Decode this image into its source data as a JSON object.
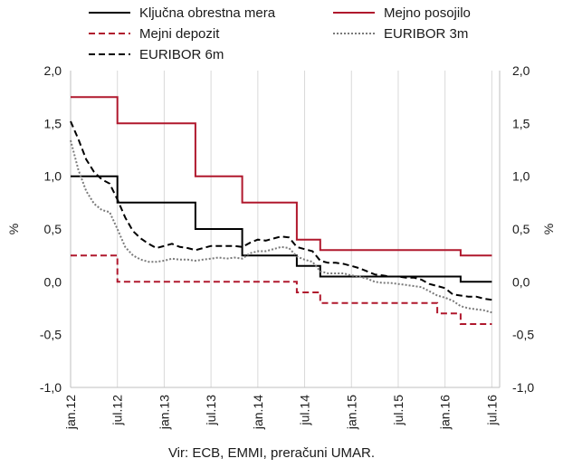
{
  "chart_data": {
    "type": "line",
    "x_ticks": [
      "jan.12",
      "jul.12",
      "jan.13",
      "jul.13",
      "jan.14",
      "jul.14",
      "jan.15",
      "jul.15",
      "jan.16",
      "jul.16"
    ],
    "x_range": [
      "2012-01",
      "2016-08"
    ],
    "ylabel_left": "%",
    "ylabel_right": "%",
    "ylim": [
      -1.0,
      2.0
    ],
    "y_ticks": [
      "2,0",
      "1,5",
      "1,0",
      "0,5",
      "0,0",
      "-0,5",
      "-1,0"
    ],
    "grid": "vertical",
    "legend_placement": "top",
    "source": "Vir: ECB, EMMI, preračuni UMAR.",
    "series": [
      {
        "name": "Ključna obrestna mera",
        "color": "#000000",
        "style": "solid",
        "points": [
          [
            "2012-01",
            1.0
          ],
          [
            "2012-07",
            1.0
          ],
          [
            "2012-07",
            0.75
          ],
          [
            "2013-05",
            0.75
          ],
          [
            "2013-05",
            0.5
          ],
          [
            "2013-11",
            0.5
          ],
          [
            "2013-11",
            0.25
          ],
          [
            "2014-06",
            0.25
          ],
          [
            "2014-06",
            0.15
          ],
          [
            "2014-09",
            0.15
          ],
          [
            "2014-09",
            0.05
          ],
          [
            "2016-03",
            0.05
          ],
          [
            "2016-03",
            0.0
          ],
          [
            "2016-07",
            0.0
          ]
        ]
      },
      {
        "name": "Mejno posojilo",
        "color": "#b0182d",
        "style": "solid",
        "points": [
          [
            "2012-01",
            1.75
          ],
          [
            "2012-07",
            1.75
          ],
          [
            "2012-07",
            1.5
          ],
          [
            "2013-05",
            1.5
          ],
          [
            "2013-05",
            1.0
          ],
          [
            "2013-11",
            1.0
          ],
          [
            "2013-11",
            0.75
          ],
          [
            "2014-06",
            0.75
          ],
          [
            "2014-06",
            0.4
          ],
          [
            "2014-09",
            0.4
          ],
          [
            "2014-09",
            0.3
          ],
          [
            "2016-03",
            0.3
          ],
          [
            "2016-03",
            0.25
          ],
          [
            "2016-07",
            0.25
          ]
        ]
      },
      {
        "name": "Mejni depozit",
        "color": "#b0182d",
        "style": "dashed",
        "points": [
          [
            "2012-01",
            0.25
          ],
          [
            "2012-07",
            0.25
          ],
          [
            "2012-07",
            0.0
          ],
          [
            "2014-06",
            0.0
          ],
          [
            "2014-06",
            -0.1
          ],
          [
            "2014-09",
            -0.1
          ],
          [
            "2014-09",
            -0.2
          ],
          [
            "2015-12",
            -0.2
          ],
          [
            "2015-12",
            -0.3
          ],
          [
            "2016-03",
            -0.3
          ],
          [
            "2016-03",
            -0.4
          ],
          [
            "2016-07",
            -0.4
          ]
        ]
      },
      {
        "name": "EURIBOR 3m",
        "color": "#7a7a7a",
        "style": "dotted",
        "points": [
          [
            "2012-01",
            1.34
          ],
          [
            "2012-02",
            1.06
          ],
          [
            "2012-03",
            0.86
          ],
          [
            "2012-04",
            0.74
          ],
          [
            "2012-05",
            0.68
          ],
          [
            "2012-06",
            0.66
          ],
          [
            "2012-07",
            0.5
          ],
          [
            "2012-08",
            0.33
          ],
          [
            "2012-09",
            0.25
          ],
          [
            "2012-10",
            0.21
          ],
          [
            "2012-11",
            0.19
          ],
          [
            "2012-12",
            0.19
          ],
          [
            "2013-01",
            0.2
          ],
          [
            "2013-02",
            0.22
          ],
          [
            "2013-03",
            0.21
          ],
          [
            "2013-04",
            0.21
          ],
          [
            "2013-05",
            0.2
          ],
          [
            "2013-06",
            0.21
          ],
          [
            "2013-07",
            0.22
          ],
          [
            "2013-08",
            0.23
          ],
          [
            "2013-09",
            0.22
          ],
          [
            "2013-10",
            0.23
          ],
          [
            "2013-11",
            0.22
          ],
          [
            "2013-12",
            0.27
          ],
          [
            "2014-01",
            0.29
          ],
          [
            "2014-02",
            0.29
          ],
          [
            "2014-03",
            0.31
          ],
          [
            "2014-04",
            0.33
          ],
          [
            "2014-05",
            0.32
          ],
          [
            "2014-06",
            0.24
          ],
          [
            "2014-07",
            0.21
          ],
          [
            "2014-08",
            0.19
          ],
          [
            "2014-09",
            0.1
          ],
          [
            "2014-10",
            0.08
          ],
          [
            "2014-11",
            0.08
          ],
          [
            "2014-12",
            0.08
          ],
          [
            "2015-01",
            0.06
          ],
          [
            "2015-02",
            0.05
          ],
          [
            "2015-03",
            0.03
          ],
          [
            "2015-04",
            0.0
          ],
          [
            "2015-05",
            -0.01
          ],
          [
            "2015-06",
            -0.01
          ],
          [
            "2015-07",
            -0.02
          ],
          [
            "2015-08",
            -0.03
          ],
          [
            "2015-09",
            -0.04
          ],
          [
            "2015-10",
            -0.05
          ],
          [
            "2015-11",
            -0.09
          ],
          [
            "2015-12",
            -0.13
          ],
          [
            "2016-01",
            -0.15
          ],
          [
            "2016-02",
            -0.18
          ],
          [
            "2016-03",
            -0.23
          ],
          [
            "2016-04",
            -0.25
          ],
          [
            "2016-05",
            -0.26
          ],
          [
            "2016-06",
            -0.27
          ],
          [
            "2016-07",
            -0.29
          ]
        ]
      },
      {
        "name": "EURIBOR 6m",
        "color": "#000000",
        "style": "dashed",
        "points": [
          [
            "2012-01",
            1.52
          ],
          [
            "2012-02",
            1.35
          ],
          [
            "2012-03",
            1.16
          ],
          [
            "2012-04",
            1.04
          ],
          [
            "2012-05",
            0.97
          ],
          [
            "2012-06",
            0.93
          ],
          [
            "2012-07",
            0.78
          ],
          [
            "2012-08",
            0.61
          ],
          [
            "2012-09",
            0.48
          ],
          [
            "2012-10",
            0.41
          ],
          [
            "2012-11",
            0.36
          ],
          [
            "2012-12",
            0.32
          ],
          [
            "2013-01",
            0.34
          ],
          [
            "2013-02",
            0.36
          ],
          [
            "2013-03",
            0.33
          ],
          [
            "2013-04",
            0.32
          ],
          [
            "2013-05",
            0.3
          ],
          [
            "2013-06",
            0.32
          ],
          [
            "2013-07",
            0.34
          ],
          [
            "2013-08",
            0.34
          ],
          [
            "2013-09",
            0.34
          ],
          [
            "2013-10",
            0.34
          ],
          [
            "2013-11",
            0.33
          ],
          [
            "2013-12",
            0.37
          ],
          [
            "2014-01",
            0.4
          ],
          [
            "2014-02",
            0.39
          ],
          [
            "2014-03",
            0.41
          ],
          [
            "2014-04",
            0.43
          ],
          [
            "2014-05",
            0.42
          ],
          [
            "2014-06",
            0.33
          ],
          [
            "2014-07",
            0.31
          ],
          [
            "2014-08",
            0.29
          ],
          [
            "2014-09",
            0.2
          ],
          [
            "2014-10",
            0.18
          ],
          [
            "2014-11",
            0.18
          ],
          [
            "2014-12",
            0.17
          ],
          [
            "2015-01",
            0.15
          ],
          [
            "2015-02",
            0.13
          ],
          [
            "2015-03",
            0.1
          ],
          [
            "2015-04",
            0.07
          ],
          [
            "2015-05",
            0.06
          ],
          [
            "2015-06",
            0.05
          ],
          [
            "2015-07",
            0.05
          ],
          [
            "2015-08",
            0.04
          ],
          [
            "2015-09",
            0.04
          ],
          [
            "2015-10",
            0.02
          ],
          [
            "2015-11",
            -0.02
          ],
          [
            "2015-12",
            -0.04
          ],
          [
            "2016-01",
            -0.06
          ],
          [
            "2016-02",
            -0.12
          ],
          [
            "2016-03",
            -0.13
          ],
          [
            "2016-04",
            -0.14
          ],
          [
            "2016-05",
            -0.14
          ],
          [
            "2016-06",
            -0.16
          ],
          [
            "2016-07",
            -0.17
          ]
        ]
      }
    ]
  }
}
